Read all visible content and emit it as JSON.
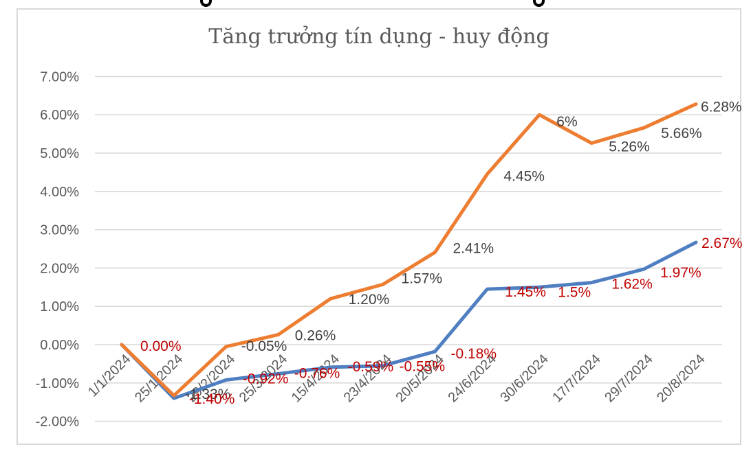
{
  "chart_data": {
    "type": "line",
    "title": "Tăng trưởng tín dụng - huy động",
    "title_color": "#595959",
    "categories": [
      "1/1/2024",
      "25/1/2024",
      "29/2/2024",
      "25/3/2024",
      "15/4/2024",
      "23/4/2024",
      "20/5/2024",
      "24/6/2024",
      "30/6/2024",
      "17/7/2024",
      "29/7/2024",
      "20/8/2024"
    ],
    "x_axis": {
      "label_rotation_deg": 45,
      "label_color": "#595959"
    },
    "y_axis": {
      "ticks": [
        "7.00%",
        "6.00%",
        "5.00%",
        "4.00%",
        "3.00%",
        "2.00%",
        "1.00%",
        "0.00%",
        "-1.00%",
        "-2.00%"
      ],
      "tick_values": [
        7,
        6,
        5,
        4,
        3,
        2,
        1,
        0,
        -1,
        -2
      ],
      "min": -2,
      "max": 7,
      "grid": true,
      "grid_color": "#d9d9d9",
      "label_color": "#595959"
    },
    "legend": "none",
    "series": [
      {
        "key": "series_blue",
        "color": "#4f7fc1",
        "label_color": "#c00000",
        "values": [
          0.0,
          -1.4,
          -0.92,
          -0.76,
          -0.59,
          -0.55,
          -0.18,
          1.45,
          1.5,
          1.62,
          1.97,
          2.67
        ],
        "labels": [
          "0.00%",
          "-1.40%",
          "-0.92%",
          "-0.76%",
          "-0.59%",
          "-0.55%",
          "-0.18%",
          "1.45%",
          "1.5%",
          "1.62%",
          "1.97%",
          "2.67%"
        ],
        "label_offsets": [
          [
            27,
            2
          ],
          [
            22,
            1
          ],
          [
            24,
            -2
          ],
          [
            23,
            -1
          ],
          [
            25,
            -1
          ],
          [
            24,
            1
          ],
          [
            23,
            3
          ],
          [
            26,
            4
          ],
          [
            27,
            7
          ],
          [
            29,
            2
          ],
          [
            24,
            5
          ],
          [
            8,
            1
          ]
        ]
      },
      {
        "key": "series_orange",
        "color": "#ed7d31",
        "label_color": "#404040",
        "values": [
          0.0,
          -1.33,
          -0.05,
          0.26,
          1.2,
          1.57,
          2.41,
          4.45,
          6,
          5.26,
          5.66,
          6.28
        ],
        "labels": [
          null,
          "-1.33%",
          "-0.05%",
          "0.26%",
          "1.20%",
          "1.57%",
          "2.41%",
          "4.45%",
          "6%",
          "5.26%",
          "5.66%",
          "6.28%"
        ],
        "label_offsets": [
          null,
          [
            16,
            -2
          ],
          [
            22,
            -1
          ],
          [
            24,
            1
          ],
          [
            26,
            1
          ],
          [
            27,
            -9
          ],
          [
            26,
            -6
          ],
          [
            24,
            3
          ],
          [
            25,
            10
          ],
          [
            25,
            5
          ],
          [
            25,
            8
          ],
          [
            7,
            4
          ]
        ]
      }
    ]
  },
  "decorations": {
    "top_cropped_descenders": [
      {
        "x": 291
      },
      {
        "x": 775
      }
    ]
  }
}
